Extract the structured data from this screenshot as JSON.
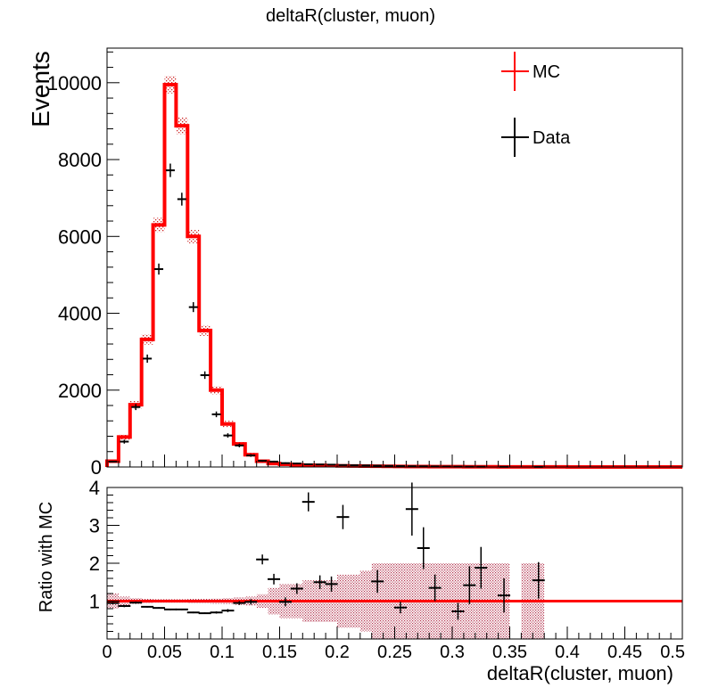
{
  "title": "deltaR(cluster, muon)",
  "chart_data": [
    {
      "type": "line",
      "panel": "main",
      "xlabel": "deltaR(cluster, muon)",
      "ylabel": "Events",
      "xlim": [
        0,
        0.5
      ],
      "ylim": [
        0,
        10900
      ],
      "y_ticks": [
        "0",
        "2000",
        "4000",
        "6000",
        "8000",
        "10000"
      ],
      "legend": {
        "placement": "top-right",
        "entries": [
          "MC",
          "Data"
        ]
      },
      "bin_width": 0.01,
      "series": [
        {
          "name": "MC",
          "style": "step-histogram",
          "color": "#ff0000",
          "x": [
            0.0,
            0.01,
            0.02,
            0.03,
            0.04,
            0.05,
            0.06,
            0.07,
            0.08,
            0.09,
            0.1,
            0.11,
            0.12,
            0.13,
            0.14,
            0.15,
            0.16,
            0.17,
            0.18,
            0.19,
            0.2,
            0.21,
            0.22,
            0.23,
            0.24,
            0.25,
            0.26,
            0.27,
            0.28,
            0.29,
            0.3,
            0.31,
            0.32,
            0.33,
            0.34,
            0.35,
            0.36,
            0.37,
            0.38,
            0.39,
            0.4,
            0.41,
            0.42,
            0.43,
            0.44,
            0.45,
            0.46,
            0.47,
            0.48,
            0.49
          ],
          "values": [
            150,
            780,
            1620,
            3320,
            6300,
            9950,
            8880,
            6000,
            3550,
            2000,
            1120,
            600,
            320,
            150,
            90,
            70,
            55,
            45,
            40,
            35,
            30,
            25,
            22,
            20,
            18,
            15,
            13,
            12,
            10,
            9,
            8,
            7,
            6,
            5,
            4,
            4,
            3,
            3,
            2,
            2,
            1,
            1,
            1,
            1,
            1,
            0,
            0,
            0,
            0,
            0
          ]
        },
        {
          "name": "Data",
          "style": "points-with-errors",
          "color": "#000000",
          "x": [
            0.005,
            0.015,
            0.025,
            0.035,
            0.045,
            0.055,
            0.065,
            0.075,
            0.085,
            0.095,
            0.105,
            0.115,
            0.125,
            0.135,
            0.145,
            0.155,
            0.165,
            0.175,
            0.185,
            0.195,
            0.205,
            0.215,
            0.225,
            0.235,
            0.245,
            0.255,
            0.265,
            0.275,
            0.285,
            0.295,
            0.305,
            0.315,
            0.325,
            0.345,
            0.375
          ],
          "values": [
            140,
            660,
            1560,
            2820,
            5150,
            7720,
            6970,
            4160,
            2390,
            1370,
            820,
            560,
            300,
            160,
            140,
            100,
            90,
            70,
            65,
            60,
            50,
            45,
            40,
            35,
            30,
            25,
            20,
            18,
            15,
            12,
            10,
            8,
            7,
            5,
            3
          ]
        }
      ]
    },
    {
      "type": "scatter",
      "panel": "ratio",
      "xlabel": "deltaR(cluster, muon)",
      "ylabel": "Ratio with MC",
      "xlim": [
        0,
        0.5
      ],
      "ylim": [
        0,
        4
      ],
      "x_ticks": [
        "0",
        "0.05",
        "0.1",
        "0.15",
        "0.2",
        "0.25",
        "0.3",
        "0.35",
        "0.4",
        "0.45",
        "0.5"
      ],
      "y_ticks": [
        "1",
        "2",
        "3",
        "4"
      ],
      "reference_line": 1,
      "series": [
        {
          "name": "Data/MC",
          "color": "#000000",
          "x": [
            0.005,
            0.015,
            0.025,
            0.035,
            0.045,
            0.055,
            0.065,
            0.075,
            0.085,
            0.095,
            0.105,
            0.115,
            0.125,
            0.135,
            0.145,
            0.155,
            0.165,
            0.175,
            0.185,
            0.195,
            0.205,
            0.235,
            0.255,
            0.265,
            0.275,
            0.285,
            0.305,
            0.315,
            0.325,
            0.345,
            0.375
          ],
          "values": [
            0.95,
            0.87,
            0.96,
            0.85,
            0.82,
            0.78,
            0.78,
            0.7,
            0.68,
            0.7,
            0.75,
            0.95,
            0.98,
            2.1,
            1.58,
            0.98,
            1.33,
            3.62,
            1.5,
            1.45,
            3.22,
            1.52,
            0.83,
            3.43,
            2.4,
            1.35,
            0.73,
            1.42,
            1.88,
            1.15,
            1.55
          ],
          "errors": [
            0.03,
            0.03,
            0.03,
            0.02,
            0.02,
            0.02,
            0.02,
            0.02,
            0.02,
            0.03,
            0.04,
            0.05,
            0.07,
            0.13,
            0.14,
            0.12,
            0.14,
            0.25,
            0.18,
            0.2,
            0.32,
            0.3,
            0.15,
            0.7,
            0.55,
            0.35,
            0.22,
            0.5,
            0.55,
            0.45,
            0.48
          ]
        },
        {
          "name": "MC uncertainty band",
          "color": "#cc6677",
          "x": [
            0.0,
            0.01,
            0.02,
            0.03,
            0.04,
            0.05,
            0.06,
            0.07,
            0.08,
            0.09,
            0.1,
            0.11,
            0.12,
            0.13,
            0.14,
            0.15,
            0.16,
            0.17,
            0.18,
            0.19,
            0.2,
            0.21,
            0.22,
            0.23,
            0.24,
            0.25,
            0.26,
            0.27,
            0.28,
            0.29,
            0.3,
            0.31,
            0.32,
            0.33,
            0.34,
            0.36,
            0.37
          ],
          "values": [
            0.2,
            0.12,
            0.08,
            0.06,
            0.05,
            0.05,
            0.05,
            0.06,
            0.06,
            0.07,
            0.08,
            0.1,
            0.12,
            0.18,
            0.35,
            0.45,
            0.45,
            0.55,
            0.55,
            0.55,
            0.7,
            0.7,
            0.8,
            1.0,
            1.0,
            1.0,
            1.0,
            1.0,
            1.0,
            1.0,
            1.0,
            1.0,
            1.0,
            1.0,
            1.0,
            1.0,
            1.0
          ]
        }
      ]
    }
  ]
}
